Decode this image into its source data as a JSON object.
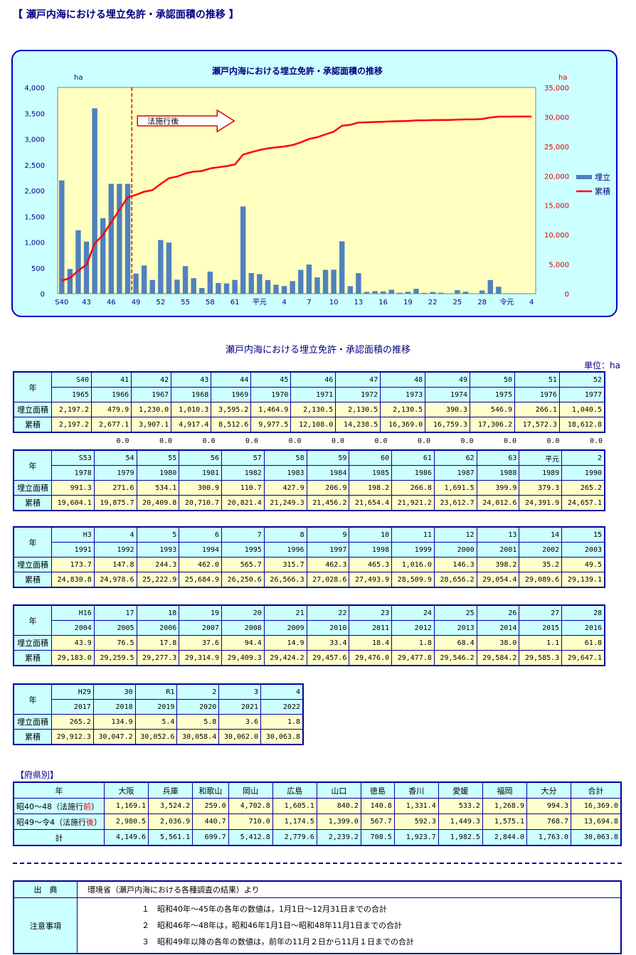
{
  "page_title": "【 瀬戸内海における埋立免許・承認面積の推移 】",
  "chart_data": {
    "type": "bar",
    "title": "瀬戸内海における埋立免許・承認面積の推移",
    "left_unit": "ha",
    "right_unit": "ha",
    "ylim_left": [
      0,
      4000
    ],
    "ylim_right": [
      0,
      35000
    ],
    "left_ticks": [
      "4,000",
      "3,500",
      "3,000",
      "2,500",
      "2,000",
      "1,500",
      "1,000",
      "500",
      "0"
    ],
    "right_ticks": [
      "35,000",
      "30,000",
      "25,000",
      "20,000",
      "15,000",
      "10,000",
      "5,000",
      "0"
    ],
    "x_tick_labels": [
      "S40",
      "43",
      "46",
      "49",
      "52",
      "55",
      "58",
      "61",
      "平元",
      "4",
      "7",
      "10",
      "13",
      "16",
      "19",
      "22",
      "25",
      "28",
      "令元",
      "4"
    ],
    "annotation": "法施行後",
    "series": [
      {
        "name": "埋立",
        "type": "bar",
        "color": "#4f81bd",
        "values": [
          2197.2,
          479.9,
          1230.0,
          1010.3,
          3595.2,
          1464.9,
          2130.5,
          2130.5,
          2130.5,
          390.3,
          546.9,
          266.1,
          1040.5,
          991.3,
          271.6,
          534.1,
          300.9,
          110.7,
          427.9,
          206.9,
          198.2,
          266.8,
          1691.5,
          399.9,
          379.3,
          265.2,
          173.7,
          147.8,
          244.3,
          462.0,
          565.7,
          315.7,
          462.3,
          465.3,
          1016.0,
          146.3,
          398.2,
          35.2,
          49.5,
          43.9,
          76.5,
          17.8,
          37.6,
          94.4,
          14.9,
          33.4,
          18.4,
          1.8,
          68.4,
          38.0,
          1.1,
          61.8,
          265.2,
          134.9,
          5.4,
          5.8,
          3.6,
          1.8
        ]
      },
      {
        "name": "累積",
        "type": "line",
        "color": "#ff0000",
        "values": [
          2197.2,
          2677.1,
          3907.1,
          4917.4,
          8512.6,
          9977.5,
          12108.0,
          14238.5,
          16369.0,
          16759.3,
          17306.2,
          17572.3,
          18612.8,
          19604.1,
          19875.7,
          20409.8,
          20710.7,
          20821.4,
          21249.3,
          21456.2,
          21654.4,
          21921.2,
          23612.7,
          24012.6,
          24391.9,
          24657.1,
          24830.8,
          24978.6,
          25222.9,
          25684.9,
          26250.6,
          26566.3,
          27028.6,
          27493.9,
          28509.9,
          28656.2,
          29054.4,
          29089.6,
          29139.1,
          29183.0,
          29259.5,
          29277.3,
          29314.9,
          29409.3,
          29424.2,
          29457.6,
          29476.0,
          29477.8,
          29546.2,
          29584.2,
          29585.3,
          29647.1,
          29912.3,
          30047.2,
          30052.6,
          30058.4,
          30062.0,
          30063.8
        ]
      }
    ]
  },
  "table_title": "瀬戸内海における埋立免許・承認面積の推移",
  "unit_label": "単位：ha",
  "row_labels": {
    "year": "年",
    "area": "埋立面積",
    "cum": "累積"
  },
  "blocks": [
    {
      "years": [
        "S40",
        "41",
        "42",
        "43",
        "44",
        "45",
        "46",
        "47",
        "48",
        "49",
        "50",
        "51",
        "52"
      ],
      "western": [
        "1965",
        "1966",
        "1967",
        "1968",
        "1969",
        "1970",
        "1971",
        "1972",
        "1973",
        "1974",
        "1975",
        "1976",
        "1977"
      ],
      "area": [
        "2,197.2",
        "479.9",
        "1,230.0",
        "1,010.3",
        "3,595.2",
        "1,464.9",
        "2,130.5",
        "2,130.5",
        "2,130.5",
        "390.3",
        "546.9",
        "266.1",
        "1,040.5"
      ],
      "cum": [
        "2,197.2",
        "2,677.1",
        "3,907.1",
        "4,917.4",
        "8,512.6",
        "9,977.5",
        "12,108.0",
        "14,238.5",
        "16,369.0",
        "16,759.3",
        "17,306.2",
        "17,572.3",
        "18,612.8"
      ]
    },
    {
      "years": [
        "S53",
        "54",
        "55",
        "56",
        "57",
        "58",
        "59",
        "60",
        "61",
        "62",
        "63",
        "平元",
        "2"
      ],
      "western": [
        "1978",
        "1979",
        "1980",
        "1981",
        "1982",
        "1983",
        "1984",
        "1985",
        "1986",
        "1987",
        "1988",
        "1989",
        "1990"
      ],
      "area": [
        "991.3",
        "271.6",
        "534.1",
        "300.9",
        "110.7",
        "427.9",
        "206.9",
        "198.2",
        "266.8",
        "1,691.5",
        "399.9",
        "379.3",
        "265.2"
      ],
      "cum": [
        "19,604.1",
        "19,875.7",
        "20,409.8",
        "20,710.7",
        "20,821.4",
        "21,249.3",
        "21,456.2",
        "21,654.4",
        "21,921.2",
        "23,612.7",
        "24,012.6",
        "24,391.9",
        "24,657.1"
      ]
    },
    {
      "years": [
        "H3",
        "4",
        "5",
        "6",
        "7",
        "8",
        "9",
        "10",
        "11",
        "12",
        "13",
        "14",
        "15"
      ],
      "western": [
        "1991",
        "1992",
        "1993",
        "1994",
        "1995",
        "1996",
        "1997",
        "1998",
        "1999",
        "2000",
        "2001",
        "2002",
        "2003"
      ],
      "area": [
        "173.7",
        "147.8",
        "244.3",
        "462.0",
        "565.7",
        "315.7",
        "462.3",
        "465.3",
        "1,016.0",
        "146.3",
        "398.2",
        "35.2",
        "49.5"
      ],
      "cum": [
        "24,830.8",
        "24,978.6",
        "25,222.9",
        "25,684.9",
        "26,250.6",
        "26,566.3",
        "27,028.6",
        "27,493.9",
        "28,509.9",
        "28,656.2",
        "29,054.4",
        "29,089.6",
        "29,139.1"
      ]
    },
    {
      "years": [
        "H16",
        "17",
        "18",
        "19",
        "20",
        "21",
        "22",
        "23",
        "24",
        "25",
        "26",
        "27",
        "28"
      ],
      "western": [
        "2004",
        "2005",
        "2006",
        "2007",
        "2008",
        "2009",
        "2010",
        "2011",
        "2012",
        "2013",
        "2014",
        "2015",
        "2016"
      ],
      "area": [
        "43.9",
        "76.5",
        "17.8",
        "37.6",
        "94.4",
        "14.9",
        "33.4",
        "18.4",
        "1.8",
        "68.4",
        "38.0",
        "1.1",
        "61.8"
      ],
      "cum": [
        "29,183.0",
        "29,259.5",
        "29,277.3",
        "29,314.9",
        "29,409.3",
        "29,424.2",
        "29,457.6",
        "29,476.0",
        "29,477.8",
        "29,546.2",
        "29,584.2",
        "29,585.3",
        "29,647.1"
      ]
    },
    {
      "years": [
        "H29",
        "30",
        "R1",
        "2",
        "3",
        "4"
      ],
      "western": [
        "2017",
        "2018",
        "2019",
        "2020",
        "2021",
        "2022"
      ],
      "area": [
        "265.2",
        "134.9",
        "5.4",
        "5.8",
        "3.6",
        "1.8"
      ],
      "cum": [
        "29,912.3",
        "30,047.2",
        "30,052.6",
        "30,058.4",
        "30,062.0",
        "30,063.8"
      ]
    }
  ],
  "zero_row": [
    "0.0",
    "0.0",
    "0.0",
    "0.0",
    "0.0",
    "0.0",
    "0.0",
    "0.0",
    "0.0",
    "0.0",
    "0.0",
    "0.0"
  ],
  "pref_section_label": "【府県別】",
  "pref": {
    "headers": [
      "年",
      "大阪",
      "兵庫",
      "和歌山",
      "岡山",
      "広島",
      "山口",
      "徳島",
      "香川",
      "愛媛",
      "福岡",
      "大分",
      "合計"
    ],
    "row1_label_a": "昭40～48（法施行",
    "row1_label_red": "前",
    "row1_label_b": "）",
    "row1": [
      "1,169.1",
      "3,524.2",
      "259.0",
      "4,702.8",
      "1,605.1",
      "840.2",
      "140.8",
      "1,331.4",
      "533.2",
      "1,268.9",
      "994.3",
      "16,369.0"
    ],
    "row2_label_a": "昭49～令4（法施行",
    "row2_label_red": "後",
    "row2_label_b": "）",
    "row2": [
      "2,980.5",
      "2,036.9",
      "440.7",
      "710.0",
      "1,174.5",
      "1,399.0",
      "567.7",
      "592.3",
      "1,449.3",
      "1,575.1",
      "768.7",
      "13,694.8"
    ],
    "total_label": "計",
    "total": [
      "4,149.6",
      "5,561.1",
      "699.7",
      "5,412.8",
      "2,779.6",
      "2,239.2",
      "708.5",
      "1,923.7",
      "1,982.5",
      "2,844.0",
      "1,763.0",
      "30,063.8"
    ]
  },
  "notes": {
    "source_label": "出　典",
    "source_text": "環境省（瀬戸内海における各種調査の結果）より",
    "notes_label": "注意事項",
    "items": [
      "１　昭和40年～45年の各年の数値は，1月1日～12月31日までの合計",
      "２　昭和46年～48年は，昭和46年1月1日～昭和48年11月1日までの合計",
      "３　昭和49年以降の各年の数値は，前年の11月２日から11月１日までの合計"
    ]
  }
}
